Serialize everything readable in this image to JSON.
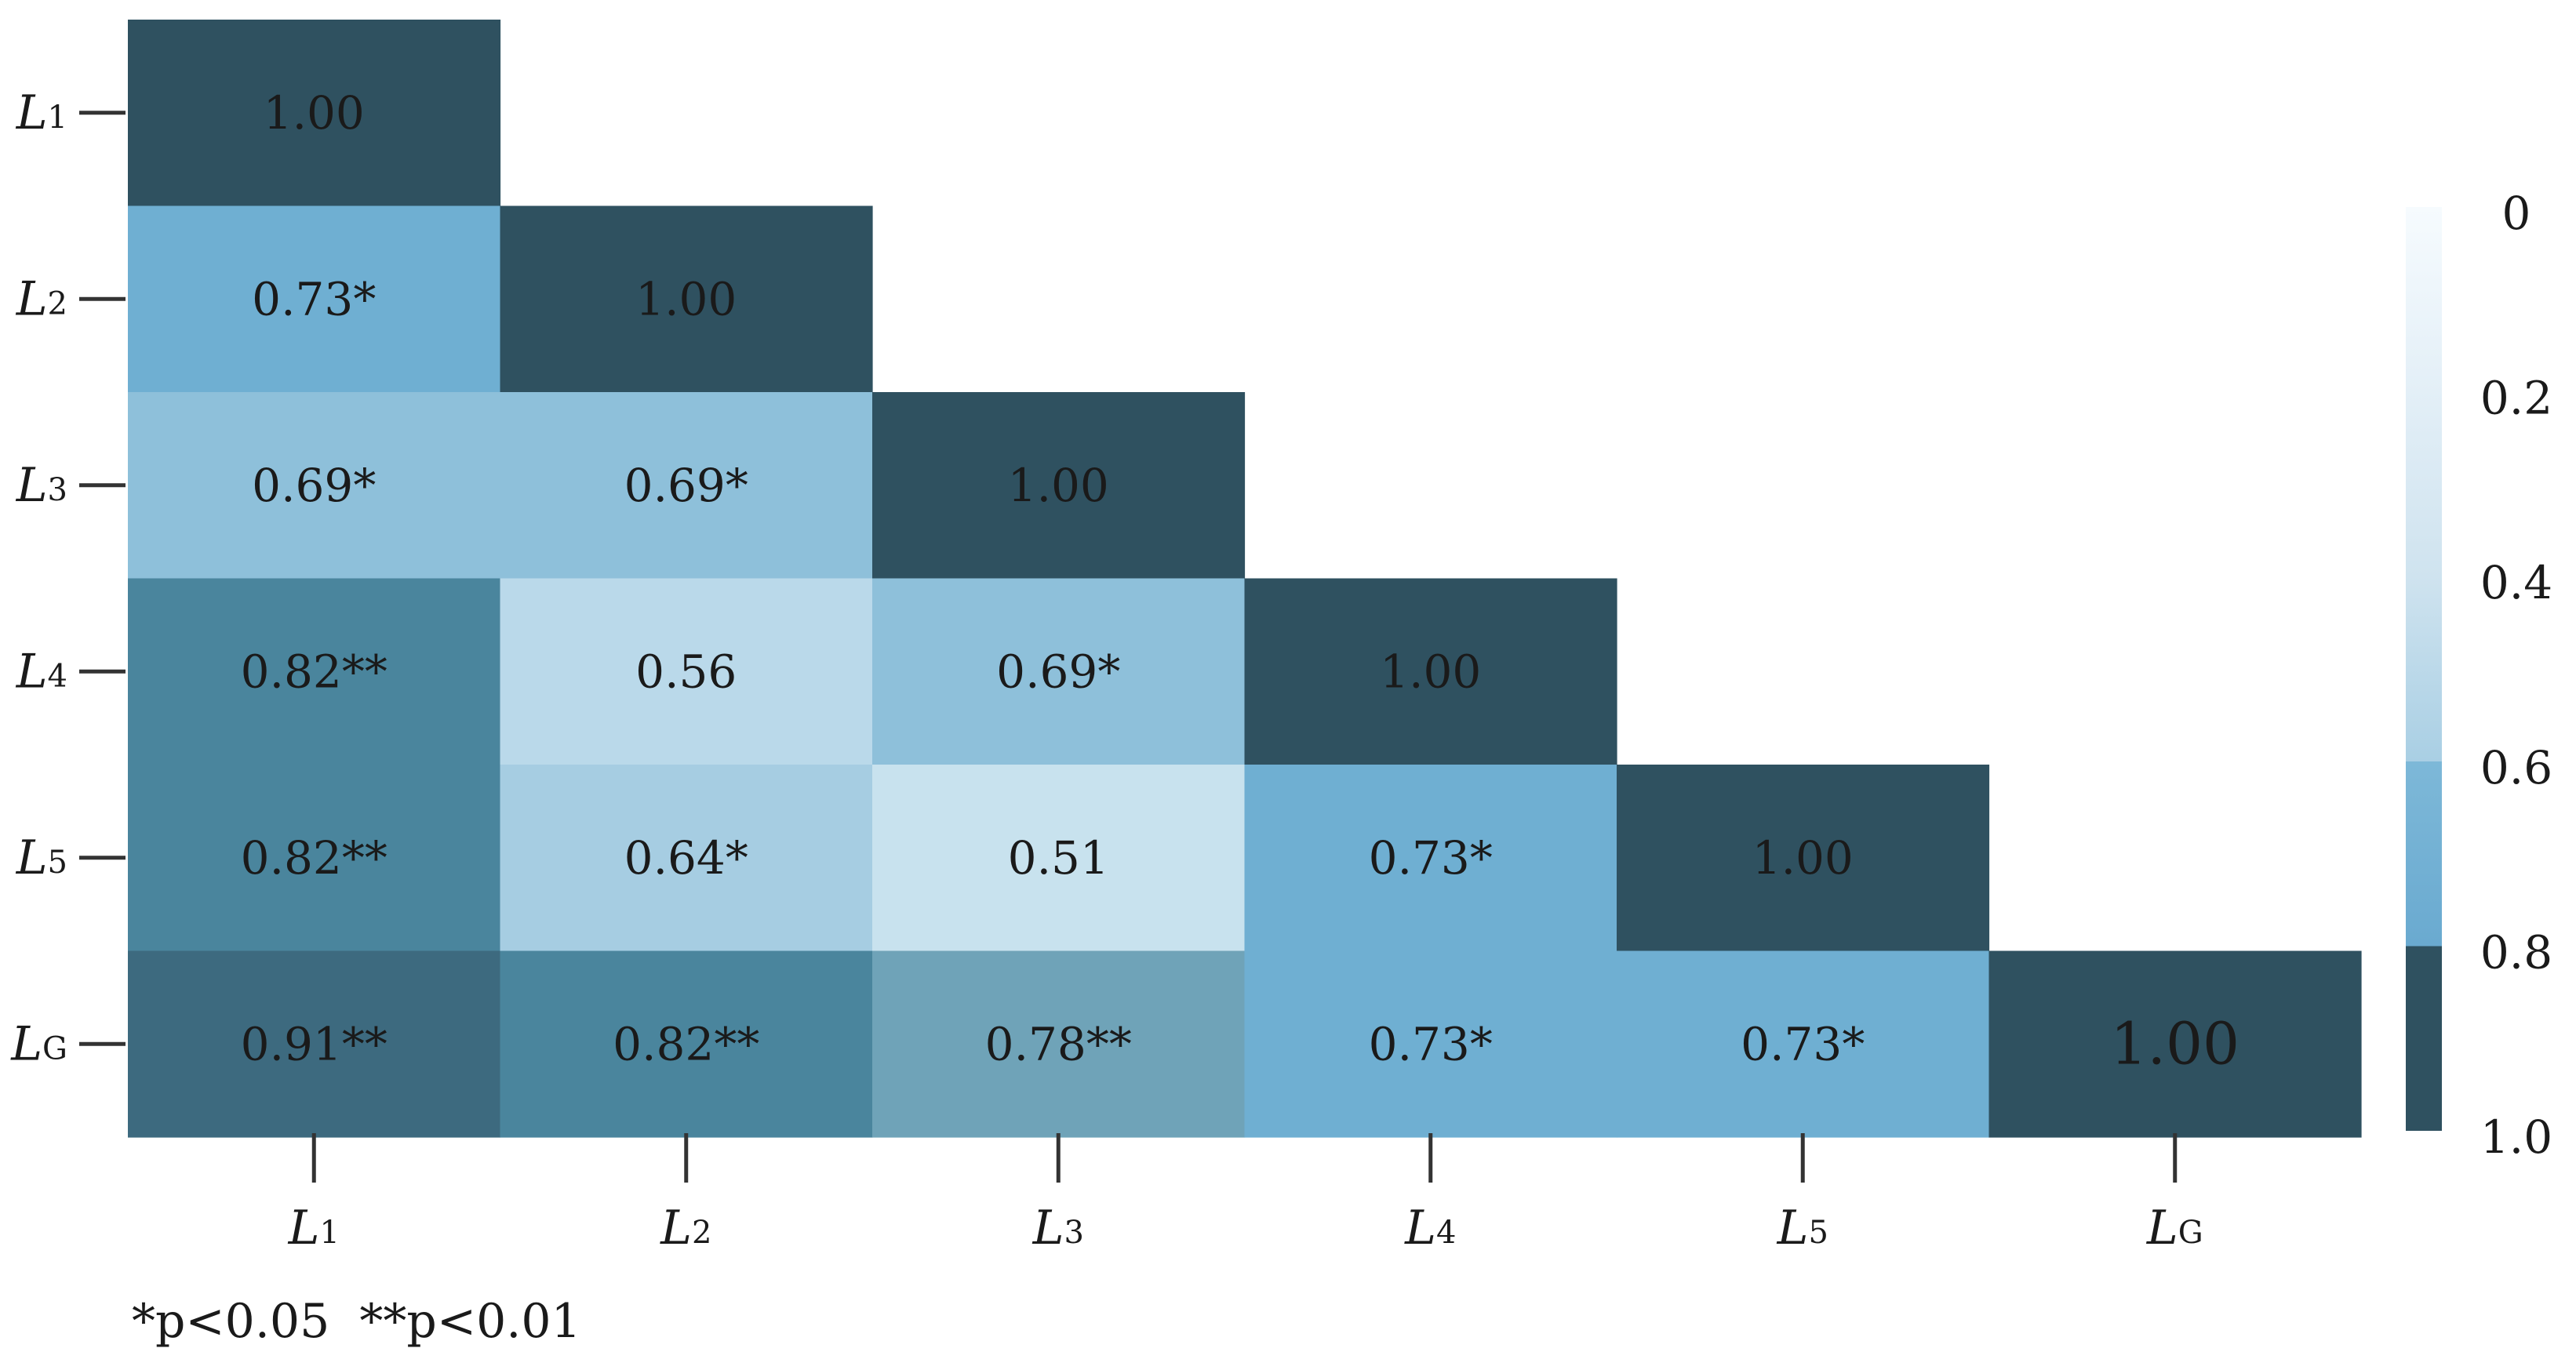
{
  "chart_data": {
    "type": "heatmap",
    "variables": [
      {
        "main": "L",
        "sub": "1"
      },
      {
        "main": "L",
        "sub": "2"
      },
      {
        "main": "L",
        "sub": "3"
      },
      {
        "main": "L",
        "sub": "4"
      },
      {
        "main": "L",
        "sub": "5"
      },
      {
        "main": "L",
        "sub": "G"
      }
    ],
    "matrix_lower_triangle": [
      [
        "1.00"
      ],
      [
        "0.73*",
        "1.00"
      ],
      [
        "0.69*",
        "0.69*",
        "1.00"
      ],
      [
        "0.82**",
        "0.56",
        "0.69*",
        "1.00"
      ],
      [
        "0.82**",
        "0.64*",
        "0.51",
        "0.73*",
        "1.00"
      ],
      [
        "0.91**",
        "0.82**",
        "0.78**",
        "0.73*",
        "0.73*",
        "1.00"
      ]
    ],
    "values": [
      [
        1.0
      ],
      [
        0.73,
        1.0
      ],
      [
        0.69,
        0.69,
        1.0
      ],
      [
        0.82,
        0.56,
        0.69,
        1.0
      ],
      [
        0.82,
        0.64,
        0.51,
        0.73,
        1.0
      ],
      [
        0.91,
        0.82,
        0.78,
        0.73,
        0.73,
        1.0
      ]
    ],
    "colorbar": {
      "range": [
        0,
        1.0
      ],
      "ticks": [
        "0",
        "0.2",
        "0.4",
        "0.6",
        "0.8",
        "1.0"
      ],
      "tick_values": [
        0,
        0.2,
        0.4,
        0.6,
        0.8,
        1.0
      ]
    },
    "colors": {
      "cell_1_00": "#2f5160",
      "cell_0_91": "#3d6a7f",
      "cell_0_82": "#4a859d",
      "cell_0_78": "#6fa3b8",
      "cell_0_73": "#6fafd2",
      "cell_0_69": "#8ec0da",
      "cell_0_64": "#a6cde2",
      "cell_0_56": "#bad9ea",
      "cell_0_51": "#c8e2ee"
    },
    "footnote": "*p<0.05  **p<0.01"
  }
}
